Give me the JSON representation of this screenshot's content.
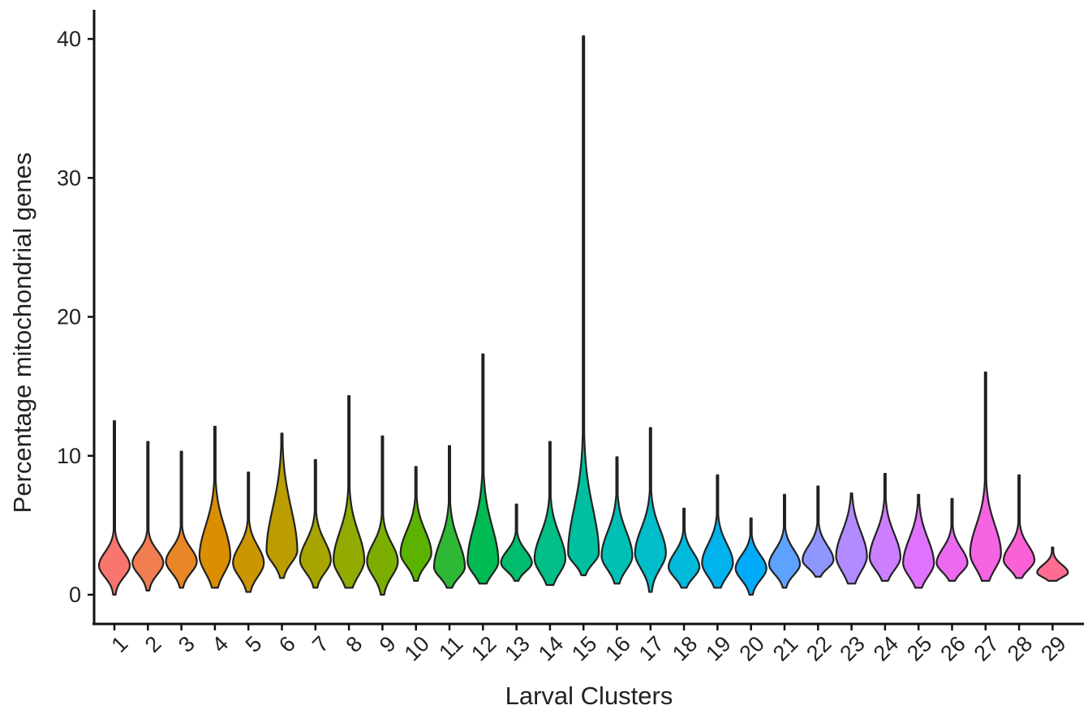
{
  "chart_data": {
    "type": "violin",
    "title": "",
    "xlabel": "Larval Clusters",
    "ylabel": "Percentage mitochondrial genes",
    "ylim": [
      -2,
      42
    ],
    "yticks": [
      0,
      10,
      20,
      30,
      40
    ],
    "grid": false,
    "legend": "none",
    "categories": [
      "1",
      "2",
      "3",
      "4",
      "5",
      "6",
      "7",
      "8",
      "9",
      "10",
      "11",
      "12",
      "13",
      "14",
      "15",
      "16",
      "17",
      "18",
      "19",
      "20",
      "21",
      "22",
      "23",
      "24",
      "25",
      "26",
      "27",
      "28",
      "29"
    ],
    "series": [
      {
        "category": "1",
        "min": 0.0,
        "max": 12.5,
        "mode": 2.1,
        "q_low": 1.0,
        "q_high": 3.3,
        "color": "#F8766D"
      },
      {
        "category": "2",
        "min": 0.3,
        "max": 11.0,
        "mode": 2.3,
        "q_low": 1.2,
        "q_high": 3.4,
        "color": "#F07E50"
      },
      {
        "category": "3",
        "min": 0.5,
        "max": 10.3,
        "mode": 2.4,
        "q_low": 1.3,
        "q_high": 3.6,
        "color": "#E88526"
      },
      {
        "category": "4",
        "min": 0.5,
        "max": 12.1,
        "mode": 2.8,
        "q_low": 1.2,
        "q_high": 5.5,
        "color": "#DB8E00"
      },
      {
        "category": "5",
        "min": 0.2,
        "max": 8.8,
        "mode": 2.3,
        "q_low": 1.0,
        "q_high": 3.8,
        "color": "#CC9600"
      },
      {
        "category": "6",
        "min": 1.2,
        "max": 11.6,
        "mode": 3.2,
        "q_low": 2.0,
        "q_high": 7.0,
        "color": "#BB9D00"
      },
      {
        "category": "7",
        "min": 0.5,
        "max": 9.7,
        "mode": 2.5,
        "q_low": 1.3,
        "q_high": 4.2,
        "color": "#A8A400"
      },
      {
        "category": "8",
        "min": 0.5,
        "max": 14.3,
        "mode": 2.5,
        "q_low": 1.0,
        "q_high": 5.0,
        "color": "#93AA00"
      },
      {
        "category": "9",
        "min": 0.0,
        "max": 11.4,
        "mode": 2.4,
        "q_low": 1.0,
        "q_high": 4.0,
        "color": "#7CAE00"
      },
      {
        "category": "10",
        "min": 1.0,
        "max": 9.2,
        "mode": 3.0,
        "q_low": 1.8,
        "q_high": 5.0,
        "color": "#5BB300"
      },
      {
        "category": "11",
        "min": 0.5,
        "max": 10.7,
        "mode": 2.0,
        "q_low": 1.0,
        "q_high": 4.3,
        "color": "#2EB835"
      },
      {
        "category": "12",
        "min": 0.8,
        "max": 17.3,
        "mode": 2.4,
        "q_low": 1.2,
        "q_high": 5.5,
        "color": "#00BA52"
      },
      {
        "category": "13",
        "min": 1.0,
        "max": 6.5,
        "mode": 2.3,
        "q_low": 1.5,
        "q_high": 3.4,
        "color": "#00BC6C"
      },
      {
        "category": "14",
        "min": 0.7,
        "max": 11.0,
        "mode": 2.6,
        "q_low": 1.2,
        "q_high": 4.8,
        "color": "#00BE86"
      },
      {
        "category": "15",
        "min": 1.4,
        "max": 40.2,
        "mode": 3.0,
        "q_low": 2.0,
        "q_high": 7.0,
        "color": "#00BF9E"
      },
      {
        "category": "16",
        "min": 0.8,
        "max": 9.9,
        "mode": 2.8,
        "q_low": 1.5,
        "q_high": 5.0,
        "color": "#00BFB4"
      },
      {
        "category": "17",
        "min": 0.2,
        "max": 12.0,
        "mode": 3.0,
        "q_low": 1.5,
        "q_high": 5.2,
        "color": "#00BDC9"
      },
      {
        "category": "18",
        "min": 0.5,
        "max": 6.2,
        "mode": 2.0,
        "q_low": 1.0,
        "q_high": 3.3,
        "color": "#00B9DB"
      },
      {
        "category": "19",
        "min": 0.5,
        "max": 8.6,
        "mode": 2.3,
        "q_low": 1.0,
        "q_high": 4.0,
        "color": "#00B3EC"
      },
      {
        "category": "20",
        "min": 0.0,
        "max": 5.5,
        "mode": 1.9,
        "q_low": 0.8,
        "q_high": 3.1,
        "color": "#00ABFA"
      },
      {
        "category": "21",
        "min": 0.5,
        "max": 7.2,
        "mode": 2.2,
        "q_low": 1.2,
        "q_high": 3.5,
        "color": "#5DA2FF"
      },
      {
        "category": "22",
        "min": 1.3,
        "max": 7.8,
        "mode": 2.5,
        "q_low": 1.7,
        "q_high": 3.8,
        "color": "#8F97FF"
      },
      {
        "category": "23",
        "min": 0.8,
        "max": 7.3,
        "mode": 2.8,
        "q_low": 1.3,
        "q_high": 5.0,
        "color": "#B18BFF"
      },
      {
        "category": "24",
        "min": 1.0,
        "max": 8.7,
        "mode": 2.7,
        "q_low": 1.5,
        "q_high": 4.8,
        "color": "#CB7FFF"
      },
      {
        "category": "25",
        "min": 0.5,
        "max": 7.2,
        "mode": 2.3,
        "q_low": 1.0,
        "q_high": 4.5,
        "color": "#DF73FF"
      },
      {
        "category": "26",
        "min": 1.0,
        "max": 6.9,
        "mode": 2.3,
        "q_low": 1.4,
        "q_high": 3.6,
        "color": "#EC69EF"
      },
      {
        "category": "27",
        "min": 1.0,
        "max": 16.0,
        "mode": 3.0,
        "q_low": 1.5,
        "q_high": 5.5,
        "color": "#F564E3"
      },
      {
        "category": "28",
        "min": 1.2,
        "max": 8.6,
        "mode": 2.5,
        "q_low": 1.6,
        "q_high": 3.8,
        "color": "#FB61D7"
      },
      {
        "category": "29",
        "min": 1.0,
        "max": 3.4,
        "mode": 1.6,
        "q_low": 1.2,
        "q_high": 2.3,
        "color": "#FF6C91"
      }
    ]
  }
}
